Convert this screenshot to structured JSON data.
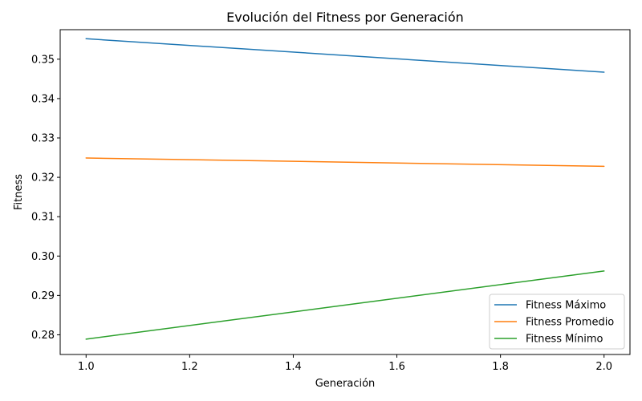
{
  "chart_data": {
    "type": "line",
    "title": "Evolución del Fitness por Generación",
    "xlabel": "Generación",
    "ylabel": "Fitness",
    "xlim": [
      0.95,
      2.05
    ],
    "ylim": [
      0.275,
      0.3575
    ],
    "xticks": [
      1.0,
      1.2,
      1.4,
      1.6,
      1.8,
      2.0
    ],
    "xtick_labels": [
      "1.0",
      "1.2",
      "1.4",
      "1.6",
      "1.8",
      "2.0"
    ],
    "yticks": [
      0.28,
      0.29,
      0.3,
      0.31,
      0.32,
      0.33,
      0.34,
      0.35
    ],
    "ytick_labels": [
      "0.28",
      "0.29",
      "0.30",
      "0.31",
      "0.32",
      "0.33",
      "0.34",
      "0.35"
    ],
    "grid": false,
    "legend_position": "lower-right",
    "x": [
      1,
      2
    ],
    "series": [
      {
        "name": "Fitness Máximo",
        "values": [
          0.3552,
          0.3467
        ],
        "color": "#1f77b4"
      },
      {
        "name": "Fitness Promedio",
        "values": [
          0.3249,
          0.3228
        ],
        "color": "#ff7f0e"
      },
      {
        "name": "Fitness Mínimo",
        "values": [
          0.2789,
          0.2962
        ],
        "color": "#2ca02c"
      }
    ]
  }
}
